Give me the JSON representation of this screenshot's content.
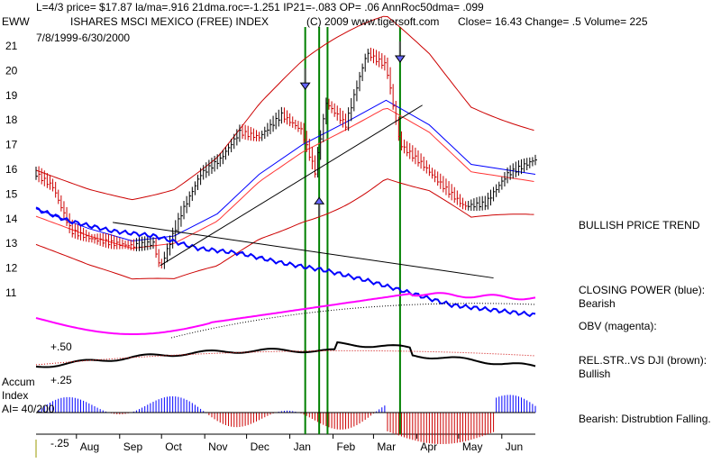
{
  "header": {
    "line1": "L=4/3  price= $17.87  la/ma=.916 21dma.roc=-1.251 IP21=-.083 OP= .06 AnnRoc50dma= .099",
    "symbol": "EWW",
    "fund_name": "ISHARES MSCI MEXICO (FREE) INDEX",
    "copyright": "(C) 2009 www.tigersoft.com",
    "quote": "Close=  16.43  Change= .5 Volume= 225",
    "date_range": "7/8/1999-6/30/2000"
  },
  "annotations": {
    "trend": "BULLISH PRICE TREND",
    "closing_power_title": "CLOSING POWER (blue):",
    "closing_power_value": "Bearish",
    "obv": "OBV (magenta):",
    "relstr_title": "REL.STR..VS DJI (brown):",
    "relstr_value": "Bullish",
    "accum_note": "Bearish: Distrubtion Falling."
  },
  "accum_label": {
    "line1": "Accum",
    "line2": "Index",
    "line3": "AI= 40/200"
  },
  "chart_data": {
    "type": "line",
    "yticks": [
      "21",
      "20",
      "19",
      "18",
      "17",
      "16",
      "15",
      "14",
      "13",
      "12",
      "11"
    ],
    "ylim": [
      10.2,
      21.8
    ],
    "months": [
      "Aug",
      "Sep",
      "Oct",
      "Nov",
      "Dec",
      "Jan",
      "Feb",
      "Mar",
      "Apr",
      "May",
      "Jun"
    ],
    "indicator_ticks": [
      "+.50",
      "+.25",
      "-.25"
    ],
    "price": [
      [
        "1999-07-08",
        15.8
      ],
      [
        "1999-07-20",
        15.3
      ],
      [
        "1999-08-02",
        13.5
      ],
      [
        "1999-08-16",
        13.2
      ],
      [
        "1999-09-01",
        13.0
      ],
      [
        "1999-09-15",
        12.9
      ],
      [
        "1999-09-30",
        13.0
      ],
      [
        "1999-10-05",
        12.0
      ],
      [
        "1999-10-20",
        14.2
      ],
      [
        "1999-11-03",
        15.8
      ],
      [
        "1999-11-17",
        16.4
      ],
      [
        "1999-12-01",
        17.5
      ],
      [
        "1999-12-15",
        17.3
      ],
      [
        "1999-12-31",
        18.2
      ],
      [
        "2000-01-14",
        17.6
      ],
      [
        "2000-01-24",
        15.9
      ],
      [
        "2000-02-01",
        18.7
      ],
      [
        "2000-02-15",
        17.8
      ],
      [
        "2000-03-01",
        20.7
      ],
      [
        "2000-03-15",
        20.2
      ],
      [
        "2000-03-25",
        17.0
      ],
      [
        "2000-04-10",
        16.2
      ],
      [
        "2000-04-25",
        15.3
      ],
      [
        "2000-05-10",
        14.5
      ],
      [
        "2000-05-25",
        14.6
      ],
      [
        "2000-06-10",
        15.8
      ],
      [
        "2000-06-30",
        16.4
      ]
    ],
    "moving_average": [
      [
        "1999-07-08",
        14.4
      ],
      [
        "1999-08-15",
        13.6
      ],
      [
        "1999-09-15",
        13.1
      ],
      [
        "1999-10-15",
        13.3
      ],
      [
        "1999-11-15",
        14.2
      ],
      [
        "1999-12-15",
        15.8
      ],
      [
        "2000-01-15",
        17.0
      ],
      [
        "2000-02-15",
        17.9
      ],
      [
        "2000-03-15",
        18.8
      ],
      [
        "2000-04-15",
        17.8
      ],
      [
        "2000-05-15",
        16.2
      ],
      [
        "2000-06-30",
        15.8
      ]
    ],
    "closing_power": [
      [
        "1999-07-08",
        14.4
      ],
      [
        "1999-08-01",
        13.9
      ],
      [
        "1999-09-01",
        13.5
      ],
      [
        "1999-10-01",
        13.3
      ],
      [
        "1999-11-01",
        12.8
      ],
      [
        "1999-12-01",
        12.6
      ],
      [
        "2000-01-01",
        12.2
      ],
      [
        "2000-02-01",
        11.9
      ],
      [
        "2000-03-01",
        11.5
      ],
      [
        "2000-04-01",
        11.0
      ],
      [
        "2000-05-01",
        10.5
      ],
      [
        "2000-06-30",
        10.1
      ]
    ]
  }
}
